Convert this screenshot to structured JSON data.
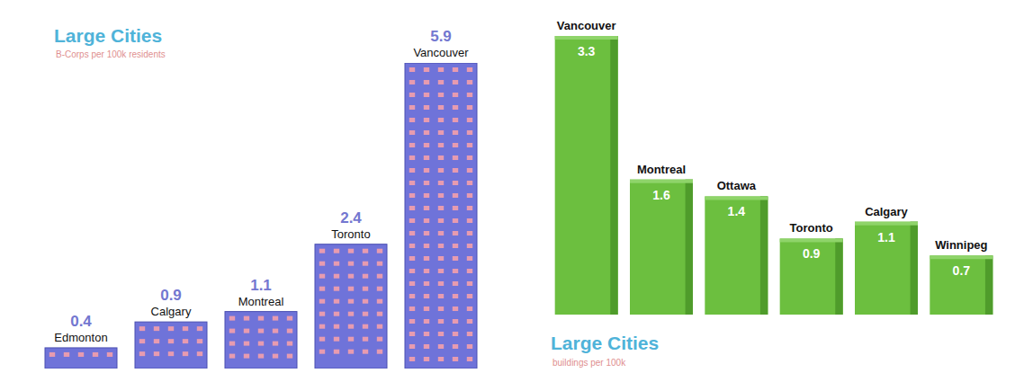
{
  "chart_data": [
    {
      "type": "bar",
      "title": "Large Cities",
      "subtitle": "B-Corps per 100k residents",
      "categories": [
        "Edmonton",
        "Calgary",
        "Montreal",
        "Toronto",
        "Vancouver"
      ],
      "values": [
        0.4,
        0.9,
        1.1,
        2.4,
        5.9
      ],
      "color": "#6f73d9",
      "ylim": [
        0,
        5.9
      ],
      "data_labels": true,
      "tick_labels": false
    },
    {
      "type": "bar",
      "title": "Large Cities",
      "subtitle": "buildings per 100k",
      "categories": [
        "Vancouver",
        "Montreal",
        "Ottawa",
        "Toronto",
        "Calgary",
        "Winnipeg"
      ],
      "values": [
        3.3,
        1.6,
        1.4,
        0.9,
        1.1,
        0.7
      ],
      "color": "#6cbf3f",
      "ylim": [
        0,
        3.3
      ],
      "data_labels": true,
      "tick_labels": false
    }
  ]
}
